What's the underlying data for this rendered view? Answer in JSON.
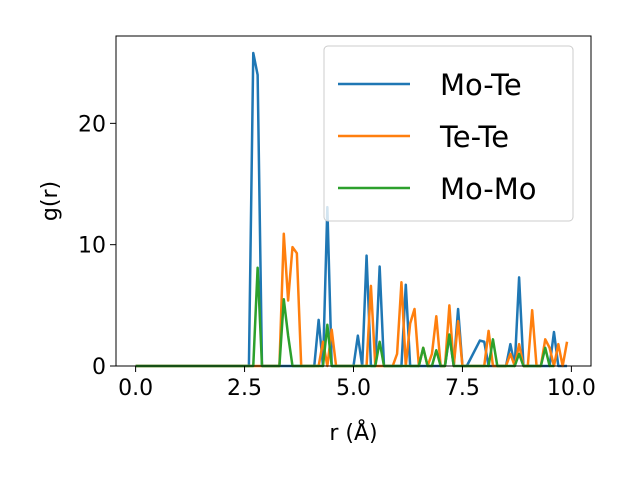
{
  "chart_data": {
    "type": "line",
    "title": "",
    "xlabel": "r (Å)",
    "ylabel": "g(r)",
    "xlim": [
      -0.45,
      10.45
    ],
    "ylim": [
      0,
      27.2
    ],
    "xticks": [
      0.0,
      2.5,
      5.0,
      7.5,
      10.0
    ],
    "xtick_labels": [
      "0.0",
      "2.5",
      "5.0",
      "7.5",
      "10.0"
    ],
    "yticks": [
      0,
      10,
      20
    ],
    "ytick_labels": [
      "0",
      "10",
      "20"
    ],
    "grid": false,
    "legend_position": "top-right",
    "series": [
      {
        "name": "Mo-Te",
        "color": "#1f77b4",
        "x": [
          0,
          2.6,
          2.7,
          2.8,
          2.9,
          4.1,
          4.2,
          4.3,
          4.4,
          4.5,
          5.0,
          5.1,
          5.2,
          5.3,
          5.4,
          5.5,
          5.6,
          5.7,
          6.0,
          6.1,
          6.2,
          6.3,
          6.4,
          6.5,
          6.6,
          6.9,
          7.0,
          7.1,
          7.2,
          7.3,
          7.4,
          7.5,
          7.6,
          7.9,
          8.0,
          8.1,
          8.2,
          8.3,
          8.5,
          8.6,
          8.7,
          8.8,
          8.9,
          9.0,
          9.5,
          9.6,
          9.7,
          9.9
        ],
        "y": [
          0,
          0,
          25.8,
          24.0,
          0,
          0,
          3.8,
          0,
          13.1,
          0,
          0,
          2.5,
          0,
          9.1,
          0,
          0,
          8.2,
          0,
          0,
          0,
          6.7,
          0,
          0,
          0,
          0,
          0,
          0,
          0,
          2.5,
          0,
          4.7,
          0,
          0,
          2.1,
          2.0,
          0,
          0,
          0,
          0,
          1.8,
          0,
          7.3,
          0,
          0,
          0,
          2.8,
          0,
          0
        ]
      },
      {
        "name": "Te-Te",
        "color": "#ff7f0e",
        "x": [
          0,
          3.3,
          3.4,
          3.5,
          3.6,
          3.7,
          3.8,
          4.2,
          4.3,
          4.4,
          4.5,
          4.6,
          5.3,
          5.4,
          5.5,
          5.9,
          6.0,
          6.1,
          6.2,
          6.3,
          6.4,
          6.5,
          6.6,
          6.7,
          6.8,
          6.9,
          7.0,
          7.1,
          7.2,
          7.3,
          7.4,
          7.5,
          7.6,
          8.0,
          8.1,
          8.2,
          8.3,
          8.5,
          8.6,
          8.7,
          8.8,
          8.9,
          9.0,
          9.1,
          9.2,
          9.3,
          9.4,
          9.5,
          9.6,
          9.7,
          9.8,
          9.9
        ],
        "y": [
          0,
          0,
          10.9,
          5.4,
          9.8,
          9.3,
          0,
          0,
          2.0,
          0,
          3.0,
          0,
          0,
          6.6,
          0,
          0,
          1.0,
          6.9,
          0,
          3.5,
          4.7,
          0,
          1.5,
          0,
          1.0,
          4.1,
          0,
          0,
          5.0,
          0,
          3.7,
          0,
          0,
          0,
          2.9,
          0,
          0,
          0,
          1.0,
          0,
          1.8,
          0,
          0,
          4.6,
          0,
          0,
          2.2,
          1.5,
          0,
          1.8,
          0,
          2.0
        ]
      },
      {
        "name": "Mo-Mo",
        "color": "#2ca02c",
        "x": [
          0,
          2.7,
          2.8,
          2.9,
          3.3,
          3.4,
          3.5,
          3.6,
          4.2,
          4.3,
          4.4,
          4.5,
          5.4,
          5.5,
          5.6,
          5.7,
          6.5,
          6.6,
          6.7,
          6.8,
          6.9,
          7.0,
          7.1,
          7.2,
          7.3,
          8.1,
          8.2,
          8.3,
          8.7,
          8.8,
          8.9,
          9.0,
          9.3,
          9.4,
          9.5,
          9.6
        ],
        "y": [
          0,
          0,
          8.1,
          0,
          0,
          5.5,
          2.5,
          0,
          0,
          0,
          3.4,
          0,
          0,
          0,
          2.0,
          0,
          0,
          1.5,
          0,
          0,
          1.3,
          0,
          0,
          2.6,
          0,
          0,
          2.2,
          0,
          0,
          1.0,
          0,
          0,
          0,
          1.5,
          0,
          0
        ]
      }
    ]
  }
}
